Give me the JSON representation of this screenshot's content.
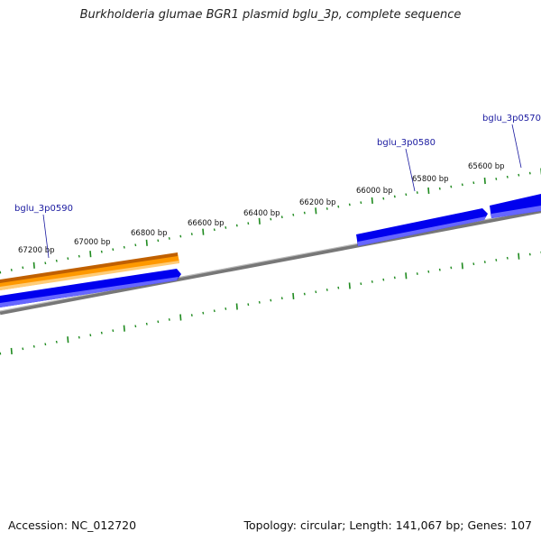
{
  "title": "Burkholderia glumae BGR1 plasmid bglu_3p, complete sequence",
  "colors": {
    "backbone": "#888888",
    "tick": "#1e8a1e",
    "gene_forward": "#0000ee",
    "gene_highlight": "#ff9900",
    "label": "#1a1aa0"
  },
  "ticks": [
    {
      "label": "67200 bp"
    },
    {
      "label": "67000 bp"
    },
    {
      "label": "66800 bp"
    },
    {
      "label": "66600 bp"
    },
    {
      "label": "66400 bp"
    },
    {
      "label": "66200 bp"
    },
    {
      "label": "66000 bp"
    },
    {
      "label": "65800 bp"
    },
    {
      "label": "65600 bp"
    }
  ],
  "genes": [
    {
      "name": "bglu_3p0590"
    },
    {
      "name": "bglu_3p0580"
    },
    {
      "name": "bglu_3p0570"
    }
  ],
  "footer": {
    "accession": "Accession: NC_012720",
    "summary": "Topology: circular; Length: 141,067 bp; Genes: 107"
  }
}
